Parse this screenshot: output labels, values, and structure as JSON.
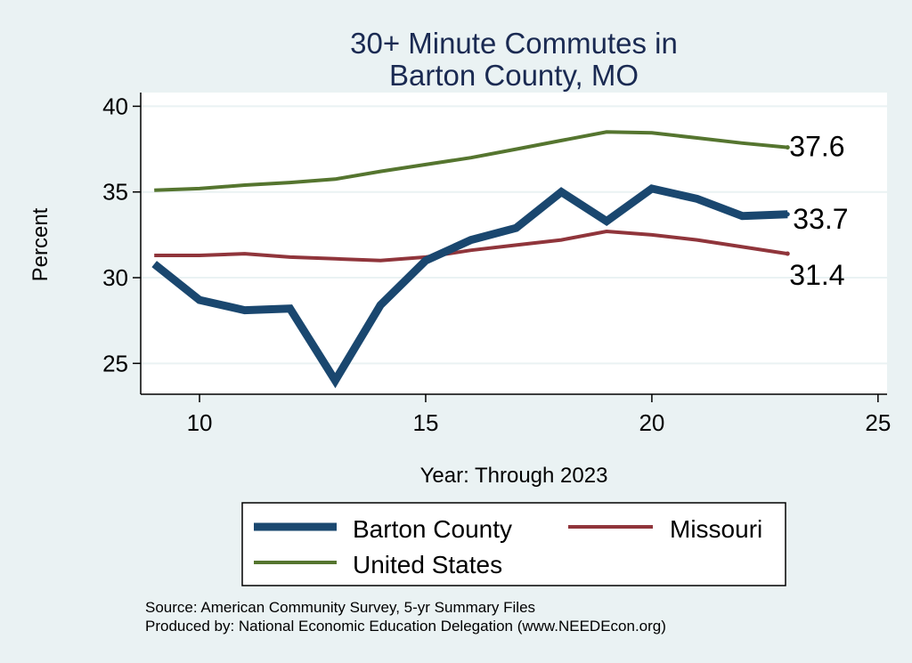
{
  "chart_data": {
    "type": "line",
    "title": [
      "30+ Minute Commutes in",
      "Barton County, MO"
    ],
    "xlabel": "Year: Through 2023",
    "ylabel": "Percent",
    "xlim": [
      8.7,
      25.2
    ],
    "ylim": [
      23.2,
      40.8
    ],
    "xticks": [
      10,
      15,
      20,
      25
    ],
    "yticks": [
      25,
      30,
      35,
      40
    ],
    "grid": true,
    "series": [
      {
        "name": "Barton County",
        "color": "#1a476f",
        "x": [
          9,
          10,
          11,
          12,
          13,
          14,
          15,
          16,
          17,
          18,
          19,
          20,
          21,
          22,
          23
        ],
        "values": [
          30.8,
          28.7,
          28.1,
          28.2,
          24.0,
          28.4,
          31.0,
          32.2,
          32.9,
          35.0,
          33.3,
          35.2,
          34.6,
          33.6,
          33.7
        ],
        "end_label": "33.7"
      },
      {
        "name": "Missouri",
        "color": "#90353b",
        "x": [
          9,
          10,
          11,
          12,
          13,
          14,
          15,
          16,
          17,
          18,
          19,
          20,
          21,
          22,
          23
        ],
        "values": [
          31.3,
          31.3,
          31.4,
          31.2,
          31.1,
          31.0,
          31.2,
          31.6,
          31.9,
          32.2,
          32.7,
          32.5,
          32.2,
          31.8,
          31.4
        ],
        "end_label": "31.4"
      },
      {
        "name": "United States",
        "color": "#55752f",
        "x": [
          9,
          10,
          11,
          12,
          13,
          14,
          15,
          16,
          17,
          18,
          19,
          20,
          21,
          22,
          23
        ],
        "values": [
          35.1,
          35.2,
          35.4,
          35.55,
          35.75,
          36.2,
          36.6,
          37.0,
          37.5,
          38.0,
          38.5,
          38.45,
          38.15,
          37.85,
          37.6
        ],
        "end_label": "37.6"
      }
    ],
    "legend": [
      "Barton County",
      "Missouri",
      "United States"
    ],
    "notes": [
      "Source: American Community Survey, 5-yr Summary Files",
      "Produced by: National Economic Education Delegation (www.NEEDEcon.org)"
    ]
  }
}
